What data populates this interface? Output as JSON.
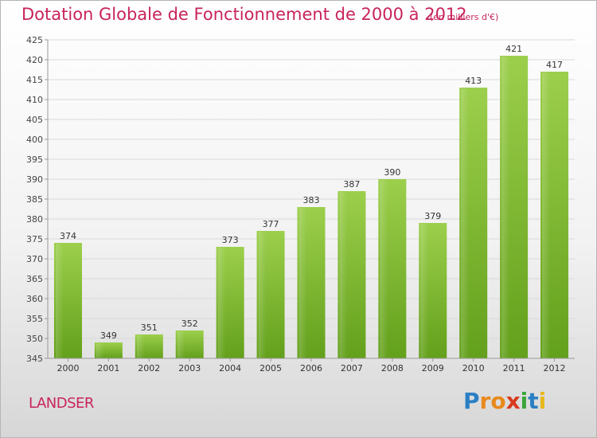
{
  "header": {
    "title": "Dotation Globale de Fonctionnement de 2000 à 2012",
    "unit": "(en milliers d'€)"
  },
  "footer": {
    "city": "LANDSER",
    "logo": "Proxiti"
  },
  "chart_data": {
    "type": "bar",
    "title": "Dotation Globale de Fonctionnement de 2000 à 2012",
    "subtitle": "(en milliers d'€)",
    "categories": [
      "2000",
      "2001",
      "2002",
      "2003",
      "2004",
      "2005",
      "2006",
      "2007",
      "2008",
      "2009",
      "2010",
      "2011",
      "2012"
    ],
    "values": [
      374,
      349,
      351,
      352,
      373,
      377,
      383,
      387,
      390,
      379,
      413,
      421,
      417
    ],
    "ylim": [
      345,
      425
    ],
    "yticks": [
      345,
      350,
      355,
      360,
      365,
      370,
      375,
      380,
      385,
      390,
      395,
      400,
      405,
      410,
      415,
      420,
      425
    ],
    "grid": true,
    "colors": {
      "bar_top": "#9ccf4c",
      "bar_bottom": "#63a01b",
      "title": "#c8245a"
    }
  }
}
